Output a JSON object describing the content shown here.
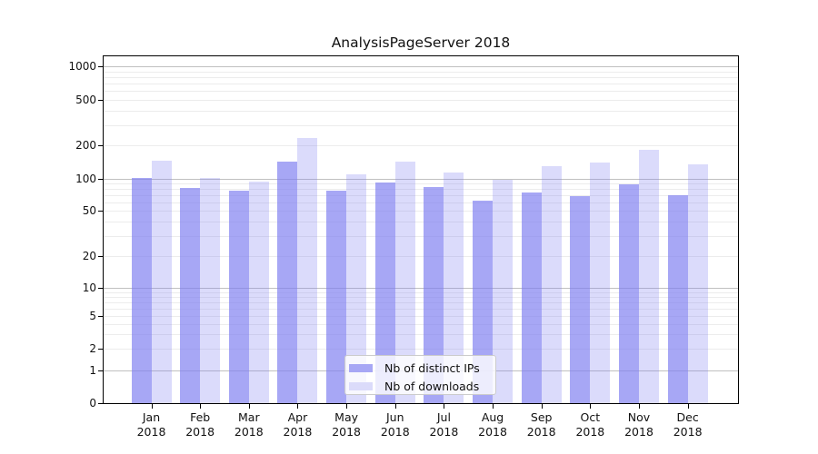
{
  "chart_data": {
    "type": "bar",
    "title": "AnalysisPageServer 2018",
    "xlabel": "",
    "ylabel": "",
    "year_label": "2018",
    "categories": [
      "Jan",
      "Feb",
      "Mar",
      "Apr",
      "May",
      "Jun",
      "Jul",
      "Aug",
      "Sep",
      "Oct",
      "Nov",
      "Dec"
    ],
    "series": [
      {
        "name": "Nb of distinct IPs",
        "color": "#a7a7f5",
        "fill_rgba": "rgba(126,126,240,0.68)",
        "values": [
          102,
          82,
          77,
          143,
          77,
          92,
          84,
          62,
          75,
          68,
          89,
          70
        ]
      },
      {
        "name": "Nb of downloads",
        "color": "#dbdbfa",
        "fill_rgba": "rgba(126,126,240,0.28)",
        "values": [
          145,
          102,
          94,
          230,
          110,
          142,
          114,
          98,
          130,
          140,
          182,
          135
        ]
      }
    ],
    "yaxis": {
      "scale": "symlog",
      "ticks": [
        0,
        1,
        2,
        5,
        10,
        20,
        50,
        100,
        200,
        500,
        1000
      ],
      "ylim": [
        0,
        1250
      ],
      "major_grid_values": [
        1,
        10,
        100,
        1000
      ]
    },
    "grid": true,
    "legend_position": "lower center inside",
    "colors": {
      "minor_grid": "#ececec",
      "major_grid": "#c0c0c0",
      "axis": "#000000",
      "text": "#111111",
      "background": "#ffffff"
    }
  }
}
